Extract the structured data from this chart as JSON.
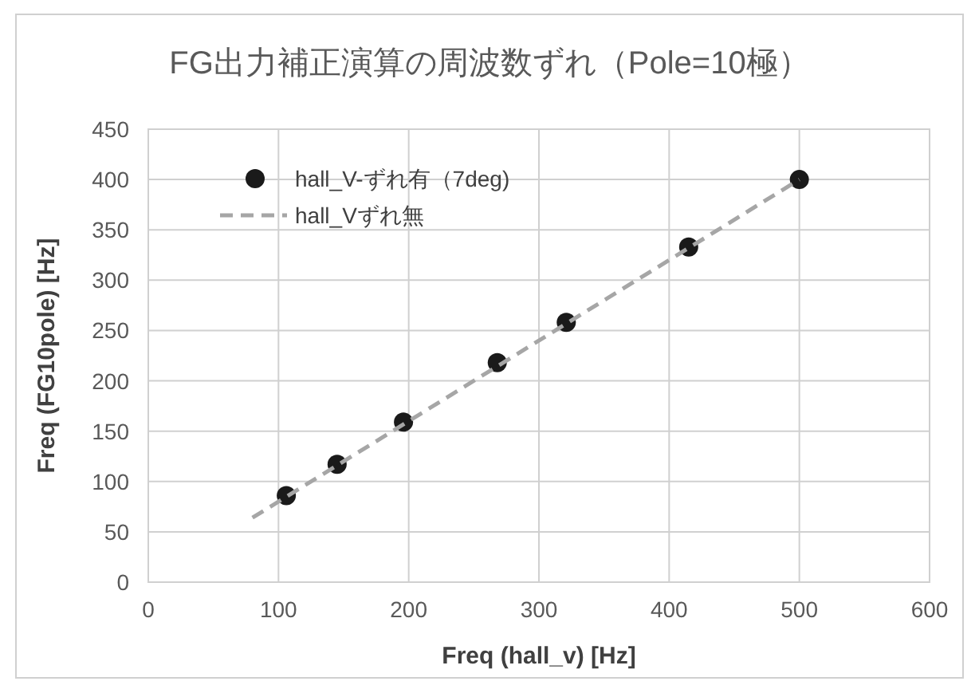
{
  "chart_data": {
    "type": "scatter",
    "title": "FG出力補正演算の周波数ずれ（Pole=10極）",
    "xlabel": "Freq (hall_v) [Hz]",
    "ylabel": "Freq (FG10pole) [Hz]",
    "xlim": [
      0,
      600
    ],
    "ylim": [
      0,
      450
    ],
    "xticks": [
      0,
      100,
      200,
      300,
      400,
      500,
      600
    ],
    "yticks": [
      0,
      50,
      100,
      150,
      200,
      250,
      300,
      350,
      400,
      450
    ],
    "grid": true,
    "legend": "top left",
    "series": [
      {
        "name": "hall_V-ずれ有（7deg)",
        "type": "scatter",
        "color": "#1a1a1a",
        "marker": "circle",
        "x": [
          106,
          145,
          196,
          268,
          321,
          415,
          500
        ],
        "values": [
          86,
          117,
          159,
          218,
          258,
          333,
          400
        ]
      },
      {
        "name": "hall_Vずれ無",
        "type": "line",
        "color": "#a6a6a6",
        "line_style": "dashed",
        "marker": "none",
        "x": [
          80,
          500
        ],
        "values": [
          64,
          400
        ]
      }
    ]
  }
}
